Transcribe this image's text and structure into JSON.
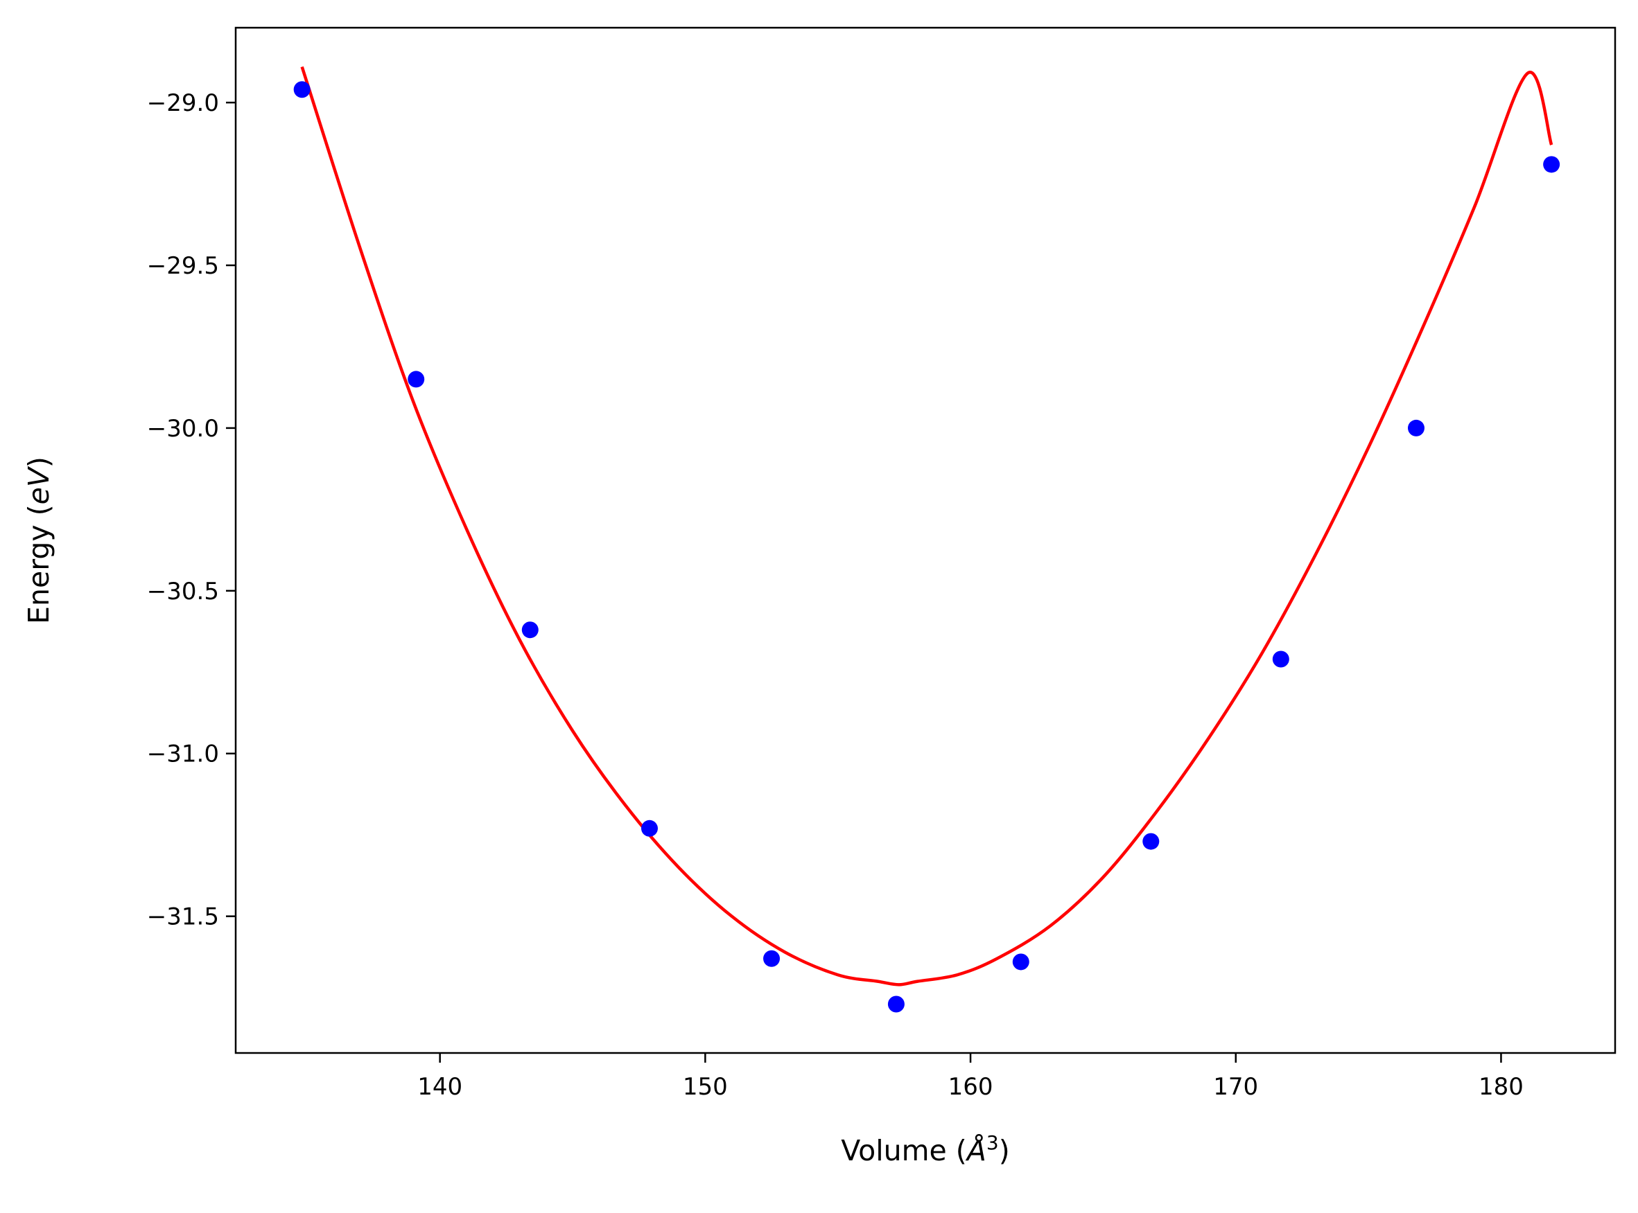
{
  "chart_data": {
    "type": "scatter",
    "title": "",
    "xlabel": {
      "prefix": "Volume (",
      "symbol": "Å",
      "exponent": "3",
      "suffix": ")"
    },
    "ylabel": {
      "prefix": "Energy (",
      "unit": "eV",
      "suffix": ")"
    },
    "xlim": [
      132.3,
      184.3
    ],
    "ylim": [
      -31.92,
      -28.77
    ],
    "x_ticks": [
      140,
      150,
      160,
      170,
      180
    ],
    "x_tick_labels": [
      "140",
      "150",
      "160",
      "170",
      "180"
    ],
    "y_ticks": [
      -29.0,
      -29.5,
      -30.0,
      -30.5,
      -31.0,
      -31.5
    ],
    "y_tick_labels": [
      "−29.0",
      "−29.5",
      "−30.0",
      "−30.5",
      "−31.0",
      "−31.5"
    ],
    "grid": false,
    "series": [
      {
        "kind": "points",
        "color": "#0000ff",
        "x": [
          134.8,
          139.1,
          143.4,
          147.9,
          152.5,
          157.2,
          161.9,
          166.8,
          171.7,
          176.8,
          181.9
        ],
        "y": [
          -28.96,
          -29.85,
          -30.62,
          -31.23,
          -31.63,
          -31.77,
          -31.64,
          -31.27,
          -30.71,
          -30.0,
          -29.19
        ]
      },
      {
        "kind": "fit_curve",
        "color": "#ff0000",
        "x": [
          134.8,
          137.0,
          139.0,
          141.0,
          143.0,
          145.0,
          147.0,
          149.0,
          151.0,
          153.0,
          155.0,
          156.5,
          157.3,
          158.0,
          159.5,
          161.0,
          163.0,
          165.0,
          167.0,
          169.0,
          171.0,
          173.0,
          175.0,
          177.0,
          179.0,
          181.0,
          181.9
        ],
        "y": [
          -28.89,
          -29.45,
          -29.92,
          -30.31,
          -30.65,
          -30.93,
          -31.16,
          -31.35,
          -31.5,
          -31.61,
          -31.68,
          -31.7,
          -31.71,
          -31.7,
          -31.68,
          -31.63,
          -31.53,
          -31.38,
          -31.18,
          -30.95,
          -30.69,
          -30.39,
          -30.06,
          -29.7,
          -29.32,
          -28.91,
          -29.13
        ]
      }
    ]
  }
}
